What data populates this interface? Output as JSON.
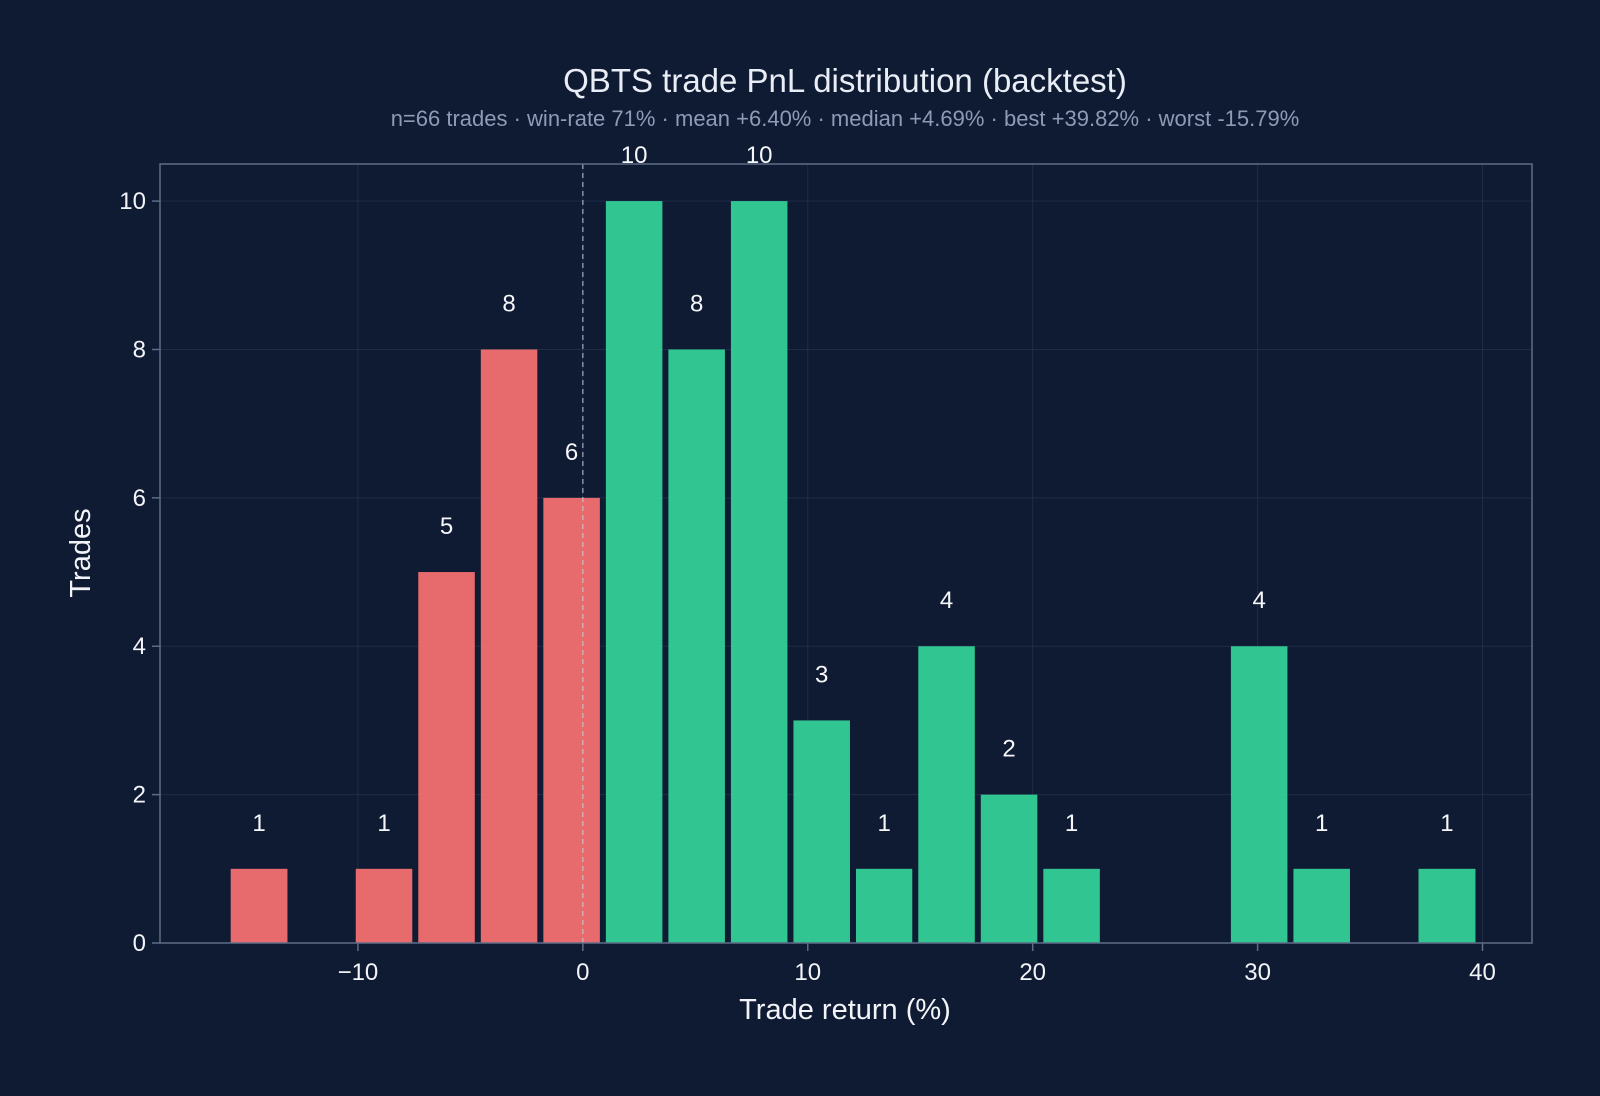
{
  "chart_data": {
    "type": "bar",
    "title": "QBTS trade PnL distribution (backtest)",
    "subtitle": "n=66 trades · win-rate 71% · mean +6.40% · median +4.69% · best +39.82% · worst -15.79%",
    "xlabel": "Trade return (%)",
    "ylabel": "Trades",
    "xlim": [
      -18.8,
      42.2
    ],
    "ylim": [
      0,
      10.5
    ],
    "x_ticks": [
      -10,
      0,
      10,
      20,
      30,
      40
    ],
    "x_tick_labels": [
      "−10",
      "0",
      "10",
      "20",
      "30",
      "40"
    ],
    "y_ticks": [
      0,
      2,
      4,
      6,
      8,
      10
    ],
    "y_tick_labels": [
      "0",
      "2",
      "4",
      "6",
      "8",
      "10"
    ],
    "grid": true,
    "zero_line": 0,
    "bin_edges": [
      -15.79,
      -13.0,
      -10.23,
      -7.45,
      -4.67,
      -1.89,
      0.89,
      3.67,
      6.45,
      9.23,
      12.01,
      14.78,
      17.56,
      20.34,
      23.12,
      25.9,
      28.68,
      31.46,
      34.24,
      37.02,
      39.82
    ],
    "values": [
      1,
      0,
      1,
      5,
      8,
      6,
      10,
      8,
      10,
      3,
      1,
      4,
      2,
      1,
      0,
      0,
      4,
      1,
      0,
      1
    ],
    "bar_labels": [
      "1",
      "",
      "1",
      "5",
      "8",
      "6",
      "10",
      "8",
      "10",
      "3",
      "1",
      "4",
      "2",
      "1",
      "",
      "",
      "4",
      "1",
      "",
      "1"
    ],
    "colors": {
      "background": "#0f1a33",
      "loss": "#f87171",
      "win": "#34d399",
      "axis": "#5f6c88",
      "grid": "#2d3b57",
      "zero_line": "#c7cfdd"
    }
  }
}
